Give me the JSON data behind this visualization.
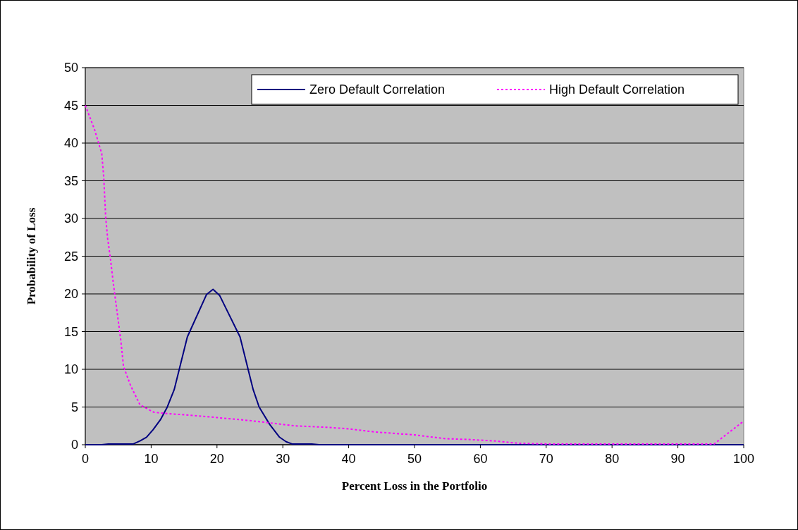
{
  "chart_data": {
    "type": "line",
    "xlabel": "Percent Loss in the Portfolio",
    "ylabel": "Probability of Loss",
    "xlim": [
      0,
      100
    ],
    "xticks": [
      0,
      10,
      20,
      30,
      40,
      50,
      60,
      70,
      80,
      90,
      100
    ],
    "ylim": [
      0,
      50
    ],
    "yticks": [
      0,
      5,
      10,
      15,
      20,
      25,
      30,
      35,
      40,
      45,
      50
    ],
    "grid": "y",
    "legend": "top right",
    "series": [
      {
        "name": "Zero Default Correlation",
        "color": "#000080",
        "line_style": "solid",
        "x": [
          0,
          2.5,
          3.5,
          7.3,
          8.3,
          9.3,
          10.3,
          11.4,
          12.4,
          13.5,
          15.5,
          18.4,
          19.4,
          20.4,
          23.5,
          25.5,
          26.4,
          28,
          29.5,
          30.5,
          31.4,
          34.4,
          35.5,
          100
        ],
        "values": [
          0,
          0,
          0.1,
          0.1,
          0.5,
          1,
          2,
          3.3,
          4.9,
          7.3,
          14.3,
          19.9,
          20.6,
          19.8,
          14.3,
          7.3,
          5,
          2.7,
          1,
          0.4,
          0.1,
          0.1,
          0,
          0
        ]
      },
      {
        "name": "High Default Correlation",
        "color": "#ff00ff",
        "line_style": "dotted",
        "x": [
          0,
          1.4,
          2.5,
          2.8,
          3.1,
          3.4,
          3.8,
          4.3,
          4.8,
          5.4,
          5.8,
          6.9,
          8.3,
          10.4,
          13,
          16,
          20,
          25,
          28,
          31.8,
          37,
          40,
          43.9,
          50,
          54.7,
          58,
          62.2,
          65.6,
          70,
          80,
          90,
          95.5,
          99.8,
          100
        ],
        "values": [
          45,
          41.8,
          38.6,
          35.5,
          30.1,
          27.3,
          24.8,
          21.1,
          17.8,
          13.8,
          10.4,
          7.8,
          5.3,
          4.3,
          4.1,
          3.9,
          3.6,
          3.2,
          2.9,
          2.5,
          2.3,
          2.1,
          1.7,
          1.3,
          0.8,
          0.7,
          0.5,
          0.2,
          0.1,
          0.1,
          0.1,
          0.1,
          3,
          3
        ]
      }
    ]
  }
}
